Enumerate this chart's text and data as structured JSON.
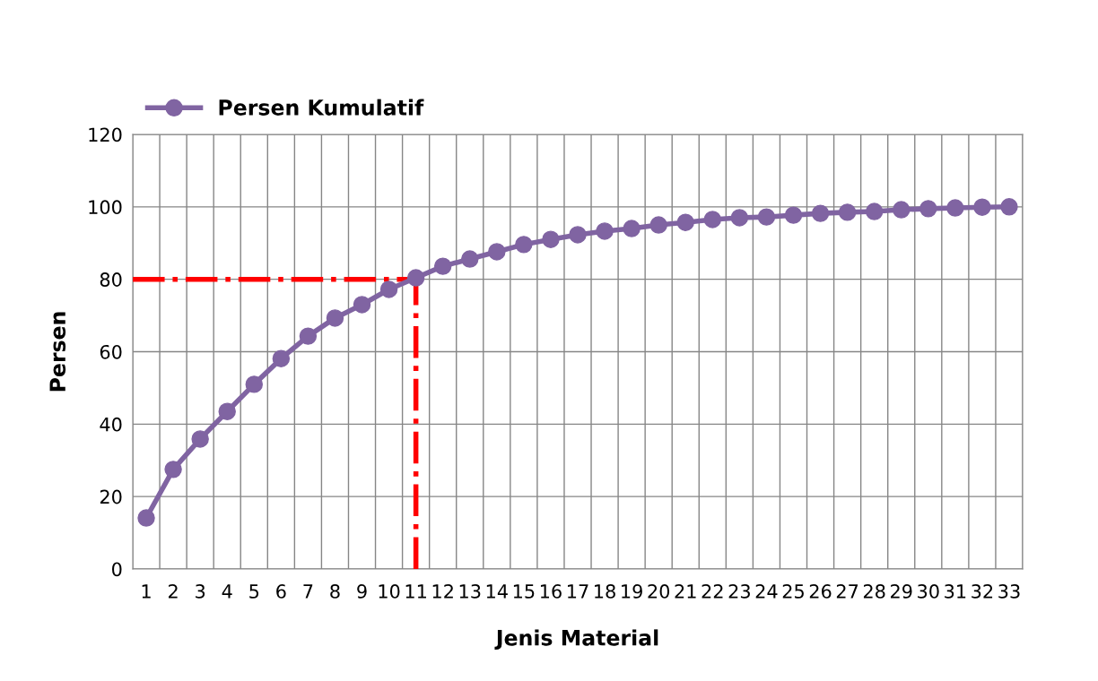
{
  "chart_data": {
    "type": "line",
    "xlabel": "Jenis Material",
    "ylabel": "Persen",
    "categories": [
      "1",
      "2",
      "3",
      "4",
      "5",
      "6",
      "7",
      "8",
      "9",
      "10",
      "11",
      "12",
      "13",
      "14",
      "15",
      "16",
      "17",
      "18",
      "19",
      "20",
      "21",
      "22",
      "23",
      "24",
      "25",
      "26",
      "27",
      "28",
      "29",
      "30",
      "31",
      "32",
      "33"
    ],
    "series": [
      {
        "name": "Persen Kumulatif",
        "color": "#8064a2",
        "values": [
          14.1,
          27.5,
          35.9,
          43.5,
          51,
          58.1,
          64.3,
          69.3,
          73,
          77.2,
          80.4,
          83.6,
          85.6,
          87.6,
          89.6,
          91,
          92.3,
          93.3,
          94,
          95,
          95.7,
          96.5,
          97,
          97.2,
          97.7,
          98.2,
          98.5,
          98.7,
          99.2,
          99.5,
          99.7,
          99.9,
          100
        ]
      }
    ],
    "ylim": [
      0,
      120
    ],
    "yticks": [
      0,
      20,
      40,
      60,
      80,
      100,
      120
    ],
    "ref_lines": [
      {
        "axis": "y",
        "value": 80,
        "color": "#ff0000",
        "line_style": "dashdot"
      },
      {
        "axis": "x",
        "value": "11",
        "color": "#ff0000",
        "line_style": "dashdot"
      }
    ],
    "grid": true,
    "legend": "top left",
    "marker": "circle",
    "line_style": "solid"
  }
}
